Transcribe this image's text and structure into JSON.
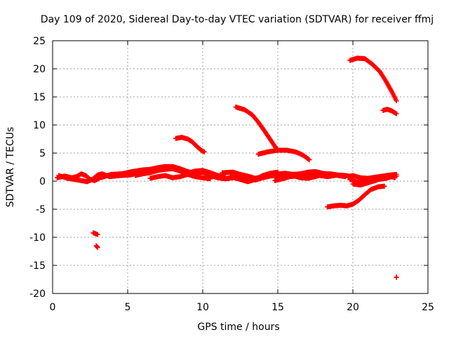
{
  "chart_data": {
    "type": "scatter",
    "title": "Day 109 of 2020, Sidereal Day-to-day VTEC variation (SDTVAR) for receiver ffmj",
    "xlabel": "GPS time / hours",
    "ylabel": "SDTVAR / TECUs",
    "xlim": [
      0,
      25
    ],
    "ylim": [
      -20,
      25
    ],
    "xticks": [
      0,
      5,
      10,
      15,
      20,
      25
    ],
    "yticks": [
      -20,
      -15,
      -10,
      -5,
      0,
      5,
      10,
      15,
      20,
      25
    ],
    "grid": true,
    "marker": "+",
    "series": [
      {
        "name": "SDTVAR",
        "color": "#ff0000",
        "tracks": [
          [
            [
              0.3,
              0.6
            ],
            [
              0.8,
              0.9
            ],
            [
              1.3,
              0.6
            ],
            [
              1.6,
              0.8
            ],
            [
              1.9,
              1.3
            ],
            [
              2.2,
              1.0
            ],
            [
              2.5,
              0.3
            ],
            [
              2.8,
              0.1
            ],
            [
              3.1,
              0.5
            ]
          ],
          [
            [
              0.4,
              1.0
            ],
            [
              1.0,
              0.5
            ],
            [
              1.7,
              0.2
            ],
            [
              2.3,
              -0.1
            ],
            [
              2.7,
              0.4
            ],
            [
              3.0,
              1.1
            ],
            [
              3.3,
              1.3
            ],
            [
              3.8,
              0.8
            ],
            [
              4.5,
              1.0
            ],
            [
              5.2,
              1.1
            ],
            [
              5.6,
              1.4
            ]
          ],
          [
            [
              3.2,
              0.6
            ],
            [
              3.9,
              1.2
            ],
            [
              4.6,
              1.3
            ],
            [
              5.3,
              1.7
            ],
            [
              6.0,
              2.0
            ],
            [
              6.5,
              2.1
            ],
            [
              7.0,
              2.4
            ],
            [
              7.5,
              2.6
            ],
            [
              8.0,
              2.6
            ],
            [
              8.5,
              2.2
            ],
            [
              9.0,
              1.7
            ],
            [
              9.5,
              1.4
            ],
            [
              10.0,
              1.6
            ],
            [
              10.5,
              1.0
            ],
            [
              11.0,
              0.6
            ],
            [
              11.5,
              0.4
            ],
            [
              12.0,
              0.8
            ]
          ],
          [
            [
              5.5,
              1.0
            ],
            [
              6.0,
              1.3
            ],
            [
              6.5,
              1.5
            ],
            [
              7.0,
              1.9
            ],
            [
              7.5,
              2.1
            ],
            [
              8.0,
              2.2
            ],
            [
              8.5,
              1.8
            ],
            [
              9.0,
              1.4
            ],
            [
              9.5,
              1.8
            ],
            [
              10.0,
              1.9
            ],
            [
              10.5,
              1.5
            ],
            [
              11.0,
              1.0
            ],
            [
              11.5,
              0.8
            ]
          ],
          [
            [
              6.5,
              0.5
            ],
            [
              7.0,
              0.8
            ],
            [
              7.5,
              1.0
            ],
            [
              8.0,
              0.6
            ],
            [
              8.5,
              0.8
            ],
            [
              9.0,
              1.2
            ],
            [
              9.5,
              0.8
            ],
            [
              10.0,
              0.6
            ],
            [
              10.5,
              0.4
            ]
          ],
          [
            [
              11.3,
              1.5
            ],
            [
              12.0,
              1.6
            ],
            [
              12.5,
              1.2
            ],
            [
              13.0,
              0.9
            ],
            [
              13.5,
              0.5
            ],
            [
              14.0,
              0.8
            ],
            [
              14.5,
              1.1
            ],
            [
              15.0,
              1.3
            ],
            [
              15.5,
              1.4
            ],
            [
              16.0,
              1.2
            ],
            [
              16.5,
              1.3
            ],
            [
              17.0,
              1.6
            ],
            [
              17.5,
              1.7
            ],
            [
              18.0,
              1.4
            ],
            [
              18.5,
              1.2
            ],
            [
              19.0,
              1.0
            ],
            [
              19.5,
              0.8
            ]
          ],
          [
            [
              11.5,
              0.4
            ],
            [
              12.0,
              0.6
            ],
            [
              12.5,
              0.7
            ],
            [
              13.0,
              0.5
            ],
            [
              13.5,
              0.2
            ],
            [
              14.0,
              0.6
            ],
            [
              14.5,
              0.9
            ],
            [
              15.0,
              1.0
            ],
            [
              15.5,
              0.8
            ]
          ],
          [
            [
              12.0,
              0.7
            ],
            [
              12.5,
              0.3
            ],
            [
              13.0,
              -0.1
            ],
            [
              13.5,
              0.3
            ],
            [
              14.0,
              1.0
            ],
            [
              14.5,
              1.4
            ],
            [
              15.0,
              1.6
            ]
          ],
          [
            [
              14.8,
              0.1
            ],
            [
              15.3,
              0.4
            ],
            [
              15.8,
              0.8
            ],
            [
              16.3,
              0.9
            ],
            [
              16.8,
              1.0
            ],
            [
              17.3,
              1.2
            ],
            [
              17.8,
              1.0
            ],
            [
              18.3,
              0.8
            ],
            [
              18.8,
              1.0
            ]
          ],
          [
            [
              16.0,
              1.0
            ],
            [
              16.5,
              0.6
            ],
            [
              17.0,
              0.5
            ],
            [
              17.5,
              0.8
            ],
            [
              18.0,
              1.2
            ],
            [
              18.5,
              1.3
            ],
            [
              19.0,
              1.1
            ],
            [
              19.5,
              1.0
            ],
            [
              20.0,
              0.8
            ]
          ],
          [
            [
              19.8,
              0.3
            ],
            [
              20.3,
              -0.2
            ],
            [
              20.7,
              0.1
            ],
            [
              21.2,
              0.0
            ],
            [
              21.7,
              0.3
            ],
            [
              22.2,
              0.5
            ],
            [
              22.6,
              0.8
            ],
            [
              22.9,
              0.9
            ]
          ],
          [
            [
              19.7,
              0.8
            ],
            [
              20.0,
              1.0
            ],
            [
              20.5,
              0.6
            ],
            [
              21.0,
              0.5
            ],
            [
              21.5,
              0.7
            ],
            [
              22.0,
              0.9
            ],
            [
              22.5,
              1.1
            ],
            [
              22.9,
              1.2
            ]
          ],
          [
            [
              20.0,
              -0.5
            ],
            [
              20.5,
              -0.7
            ],
            [
              21.0,
              -0.3
            ],
            [
              21.5,
              0.1
            ],
            [
              22.0,
              0.6
            ],
            [
              22.5,
              0.9
            ],
            [
              22.8,
              0.6
            ]
          ],
          [
            [
              8.2,
              7.6
            ],
            [
              8.6,
              7.8
            ],
            [
              9.0,
              7.5
            ],
            [
              9.3,
              7.0
            ],
            [
              9.6,
              6.2
            ],
            [
              9.9,
              5.5
            ],
            [
              10.1,
              5.2
            ]
          ],
          [
            [
              12.2,
              13.2
            ],
            [
              12.8,
              12.7
            ],
            [
              13.3,
              11.8
            ],
            [
              13.7,
              10.5
            ],
            [
              14.1,
              9.0
            ],
            [
              14.5,
              7.4
            ],
            [
              14.9,
              5.8
            ]
          ],
          [
            [
              13.7,
              4.8
            ],
            [
              14.3,
              5.2
            ],
            [
              15.0,
              5.5
            ],
            [
              15.6,
              5.5
            ],
            [
              16.2,
              5.2
            ],
            [
              16.7,
              4.6
            ],
            [
              17.1,
              3.8
            ]
          ],
          [
            [
              19.8,
              21.5
            ],
            [
              20.3,
              21.9
            ],
            [
              20.8,
              21.8
            ],
            [
              21.3,
              20.8
            ],
            [
              21.8,
              19.5
            ],
            [
              22.2,
              17.8
            ],
            [
              22.6,
              15.9
            ],
            [
              22.9,
              14.3
            ]
          ],
          [
            [
              22.0,
              12.6
            ],
            [
              22.3,
              12.8
            ],
            [
              22.6,
              12.5
            ],
            [
              22.9,
              12.0
            ]
          ],
          [
            [
              18.3,
              -4.6
            ],
            [
              18.7,
              -4.4
            ],
            [
              19.2,
              -4.3
            ],
            [
              19.6,
              -4.4
            ],
            [
              20.0,
              -4.1
            ],
            [
              20.4,
              -3.4
            ],
            [
              20.8,
              -2.4
            ],
            [
              21.2,
              -1.5
            ],
            [
              21.7,
              -1.0
            ],
            [
              22.1,
              -0.9
            ]
          ],
          [
            [
              2.7,
              -9.2
            ],
            [
              3.0,
              -9.5
            ]
          ],
          [
            [
              2.9,
              -11.5
            ],
            [
              3.0,
              -11.8
            ]
          ],
          [
            [
              22.9,
              -17.1
            ],
            [
              22.9,
              -17.1
            ]
          ]
        ]
      }
    ]
  }
}
